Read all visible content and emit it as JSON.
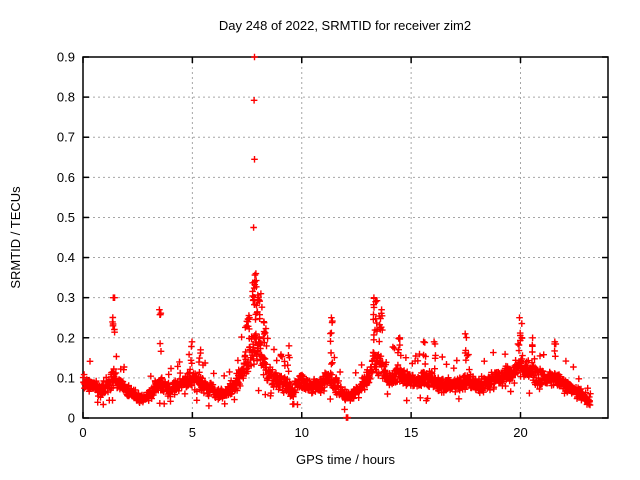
{
  "window": {
    "background": "#ffffff"
  },
  "colors": {
    "marker": "#ff0000",
    "axis": "#000000",
    "text": "#000000",
    "grid": "#a6a6a6",
    "background": "#ffffff"
  },
  "chart_data": {
    "type": "scatter",
    "title": "Day 248 of 2022, SRMTID for receiver zim2",
    "xlabel": "GPS time / hours",
    "ylabel": "SRMTID / TECUs",
    "xlim": [
      0,
      24
    ],
    "ylim": [
      0,
      0.9
    ],
    "xticks": {
      "values": [
        0,
        5,
        10,
        15,
        20
      ],
      "labels": [
        "0",
        "5",
        "10",
        "15",
        "20"
      ]
    },
    "yticks": {
      "values": [
        0,
        0.1,
        0.2,
        0.3,
        0.4,
        0.5,
        0.6,
        0.7,
        0.8,
        0.9
      ],
      "labels": [
        "0",
        "0.1",
        "0.2",
        "0.3",
        "0.4",
        "0.5",
        "0.6",
        "0.7",
        "0.8",
        "0.9"
      ]
    },
    "grid": {
      "show": true,
      "dash": "2,3"
    },
    "legend": "none",
    "series": [
      {
        "name": "SRMTID",
        "marker": "plus",
        "color": "#ff0000",
        "x_start": 0.0,
        "x_end": 23.2,
        "n_points": 1800,
        "band_envelope": [
          [
            0.0,
            0.05,
            0.13
          ],
          [
            0.4,
            0.05,
            0.12
          ],
          [
            0.8,
            0.04,
            0.1
          ],
          [
            1.2,
            0.05,
            0.13
          ],
          [
            1.4,
            0.06,
            0.16
          ],
          [
            1.7,
            0.05,
            0.12
          ],
          [
            2.0,
            0.04,
            0.1
          ],
          [
            2.4,
            0.03,
            0.08
          ],
          [
            2.8,
            0.03,
            0.07
          ],
          [
            3.2,
            0.04,
            0.1
          ],
          [
            3.5,
            0.05,
            0.13
          ],
          [
            3.9,
            0.04,
            0.1
          ],
          [
            4.3,
            0.05,
            0.12
          ],
          [
            4.7,
            0.05,
            0.14
          ],
          [
            5.0,
            0.06,
            0.15
          ],
          [
            5.4,
            0.05,
            0.13
          ],
          [
            5.8,
            0.04,
            0.11
          ],
          [
            6.2,
            0.03,
            0.09
          ],
          [
            6.6,
            0.04,
            0.1
          ],
          [
            7.0,
            0.05,
            0.13
          ],
          [
            7.3,
            0.06,
            0.18
          ],
          [
            7.6,
            0.08,
            0.26
          ],
          [
            7.9,
            0.1,
            0.29
          ],
          [
            8.1,
            0.09,
            0.26
          ],
          [
            8.4,
            0.07,
            0.17
          ],
          [
            8.8,
            0.06,
            0.14
          ],
          [
            9.2,
            0.05,
            0.13
          ],
          [
            9.6,
            0.04,
            0.11
          ],
          [
            10.0,
            0.06,
            0.13
          ],
          [
            10.4,
            0.05,
            0.12
          ],
          [
            10.8,
            0.05,
            0.12
          ],
          [
            11.2,
            0.06,
            0.15
          ],
          [
            11.5,
            0.05,
            0.13
          ],
          [
            11.9,
            0.03,
            0.09
          ],
          [
            12.2,
            0.03,
            0.08
          ],
          [
            12.6,
            0.04,
            0.1
          ],
          [
            13.0,
            0.06,
            0.14
          ],
          [
            13.3,
            0.08,
            0.22
          ],
          [
            13.6,
            0.08,
            0.2
          ],
          [
            14.0,
            0.06,
            0.14
          ],
          [
            14.4,
            0.07,
            0.16
          ],
          [
            14.8,
            0.06,
            0.14
          ],
          [
            15.2,
            0.06,
            0.13
          ],
          [
            15.6,
            0.06,
            0.14
          ],
          [
            16.0,
            0.06,
            0.14
          ],
          [
            16.4,
            0.05,
            0.13
          ],
          [
            16.8,
            0.05,
            0.12
          ],
          [
            17.2,
            0.05,
            0.12
          ],
          [
            17.6,
            0.06,
            0.14
          ],
          [
            18.0,
            0.05,
            0.12
          ],
          [
            18.4,
            0.05,
            0.13
          ],
          [
            18.8,
            0.06,
            0.14
          ],
          [
            19.2,
            0.06,
            0.15
          ],
          [
            19.6,
            0.07,
            0.16
          ],
          [
            20.0,
            0.08,
            0.19
          ],
          [
            20.4,
            0.08,
            0.17
          ],
          [
            20.8,
            0.06,
            0.15
          ],
          [
            21.2,
            0.06,
            0.14
          ],
          [
            21.6,
            0.06,
            0.15
          ],
          [
            22.0,
            0.05,
            0.12
          ],
          [
            22.4,
            0.04,
            0.11
          ],
          [
            22.8,
            0.03,
            0.09
          ],
          [
            23.2,
            0.02,
            0.06
          ]
        ],
        "spike_clusters": [
          [
            1.4,
            0.3,
            8,
            0.06
          ],
          [
            3.52,
            0.27,
            6,
            0.05
          ],
          [
            4.95,
            0.19,
            4,
            0.05
          ],
          [
            5.35,
            0.17,
            4,
            0.05
          ],
          [
            7.55,
            0.25,
            8,
            0.08
          ],
          [
            7.85,
            0.36,
            18,
            0.1
          ],
          [
            8.05,
            0.31,
            12,
            0.1
          ],
          [
            8.3,
            0.24,
            8,
            0.08
          ],
          [
            9.4,
            0.18,
            4,
            0.05
          ],
          [
            11.35,
            0.25,
            8,
            0.07
          ],
          [
            13.35,
            0.3,
            14,
            0.1
          ],
          [
            13.6,
            0.27,
            8,
            0.08
          ],
          [
            14.45,
            0.2,
            6,
            0.06
          ],
          [
            15.6,
            0.19,
            4,
            0.05
          ],
          [
            16.1,
            0.19,
            4,
            0.05
          ],
          [
            17.5,
            0.21,
            5,
            0.05
          ],
          [
            20.0,
            0.25,
            9,
            0.08
          ],
          [
            20.6,
            0.2,
            5,
            0.06
          ],
          [
            21.6,
            0.19,
            5,
            0.05
          ]
        ],
        "outlier_points": [
          [
            7.84,
            0.9
          ],
          [
            7.82,
            0.792
          ],
          [
            7.84,
            0.645
          ],
          [
            7.8,
            0.475
          ],
          [
            12.04,
            0.001
          ],
          [
            12.1,
            0.001
          ]
        ]
      }
    ]
  }
}
